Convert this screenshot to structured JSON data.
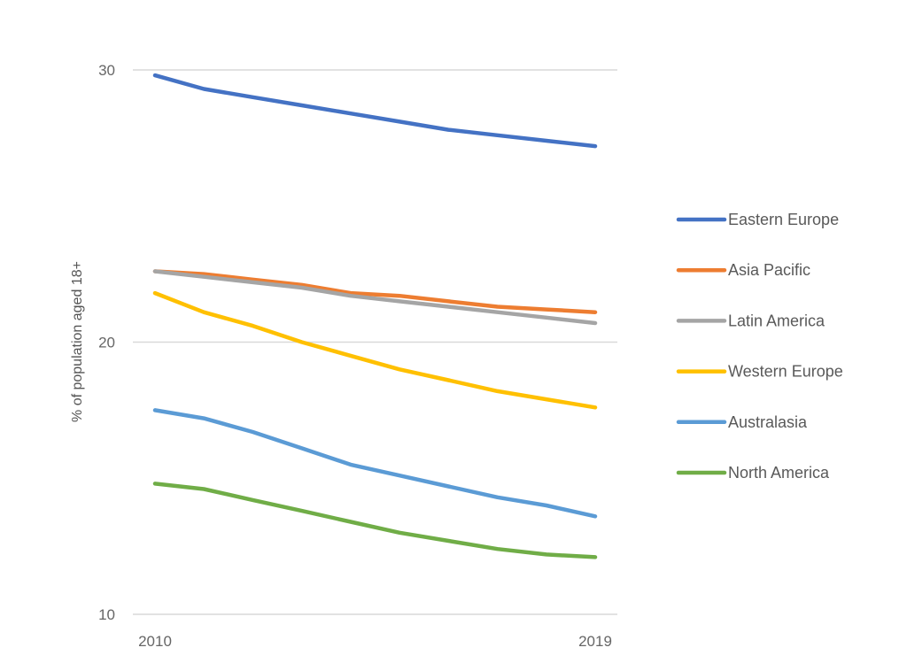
{
  "chart_data": {
    "type": "line",
    "title": "",
    "xlabel": "",
    "ylabel": "% of population aged 18+",
    "x": [
      2010,
      2011,
      2012,
      2013,
      2014,
      2015,
      2016,
      2017,
      2018,
      2019
    ],
    "x_tick_labels": [
      "2010",
      "2019"
    ],
    "ylim": [
      10,
      30
    ],
    "y_ticks": [
      10,
      20,
      30
    ],
    "y_tick_labels": [
      "10",
      "20",
      "30"
    ],
    "grid": true,
    "legend_position": "right",
    "series": [
      {
        "name": "Eastern Europe",
        "color": "#4472C4",
        "values": [
          29.8,
          29.3,
          29.0,
          28.7,
          28.4,
          28.1,
          27.8,
          27.6,
          27.4,
          27.2
        ]
      },
      {
        "name": "Asia Pacific",
        "color": "#ED7D31",
        "values": [
          22.6,
          22.5,
          22.3,
          22.1,
          21.8,
          21.7,
          21.5,
          21.3,
          21.2,
          21.1
        ]
      },
      {
        "name": "Latin America",
        "color": "#A5A5A5",
        "values": [
          22.6,
          22.4,
          22.2,
          22.0,
          21.7,
          21.5,
          21.3,
          21.1,
          20.9,
          20.7
        ]
      },
      {
        "name": "Western Europe",
        "color": "#FFC000",
        "values": [
          21.8,
          21.1,
          20.6,
          20.0,
          19.5,
          19.0,
          18.6,
          18.2,
          17.9,
          17.6
        ]
      },
      {
        "name": "Australasia",
        "color": "#5B9BD5",
        "values": [
          17.5,
          17.2,
          16.7,
          16.1,
          15.5,
          15.1,
          14.7,
          14.3,
          14.0,
          13.6
        ]
      },
      {
        "name": "North America",
        "color": "#70AD47",
        "values": [
          14.8,
          14.6,
          14.2,
          13.8,
          13.4,
          13.0,
          12.7,
          12.4,
          12.2,
          12.1
        ]
      }
    ]
  }
}
